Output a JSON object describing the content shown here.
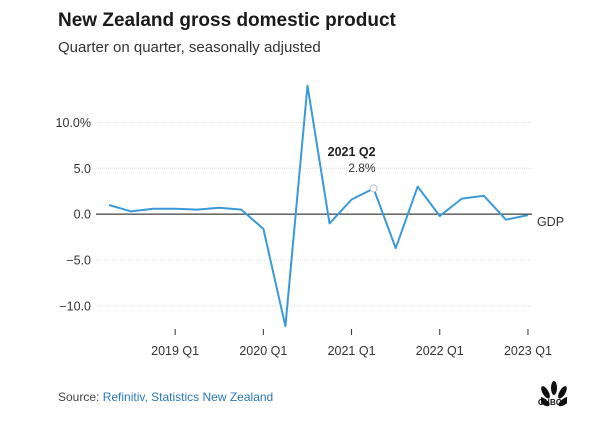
{
  "header": {
    "title": "New Zealand gross domestic product",
    "subtitle": "Quarter on quarter, seasonally adjusted"
  },
  "source": {
    "prefix": "Source: ",
    "names": "Refinitiv, Statistics New Zealand"
  },
  "logo": {
    "text": "CNBC"
  },
  "colors": {
    "line": "#3a9ad9",
    "grid": "#dddddd",
    "zero": "#111111",
    "link": "#2a7ab8"
  },
  "chart_data": {
    "type": "line",
    "title": "New Zealand gross domestic product",
    "subtitle": "Quarter on quarter, seasonally adjusted",
    "x": [
      "2018 Q2",
      "2018 Q3",
      "2018 Q4",
      "2019 Q1",
      "2019 Q2",
      "2019 Q3",
      "2019 Q4",
      "2020 Q1",
      "2020 Q2",
      "2020 Q3",
      "2020 Q4",
      "2021 Q1",
      "2021 Q2",
      "2021 Q3",
      "2021 Q4",
      "2022 Q1",
      "2022 Q2",
      "2022 Q3",
      "2022 Q4",
      "2023 Q1"
    ],
    "series": [
      {
        "name": "GDP",
        "values": [
          1.0,
          0.3,
          0.6,
          0.6,
          0.5,
          0.7,
          0.5,
          -1.6,
          -12.2,
          14.0,
          -1.0,
          1.6,
          2.8,
          -3.7,
          3.0,
          -0.2,
          1.7,
          2.0,
          -0.6,
          -0.1
        ]
      }
    ],
    "x_ticks": [
      "2019 Q1",
      "2020 Q1",
      "2021 Q1",
      "2022 Q1",
      "2023 Q1"
    ],
    "y_ticks": [
      10.0,
      5.0,
      0.0,
      -5.0,
      -10.0
    ],
    "y_tick_labels": [
      "10.0%",
      "5.0",
      "0.0",
      "−5.0",
      "−10.0"
    ],
    "ylim": [
      -12.5,
      14.5
    ],
    "grid": "horizontal",
    "annotation": {
      "x": "2021 Q2",
      "label": "2021 Q2",
      "value_label": "2.8%"
    },
    "xlabel": "",
    "ylabel": ""
  }
}
